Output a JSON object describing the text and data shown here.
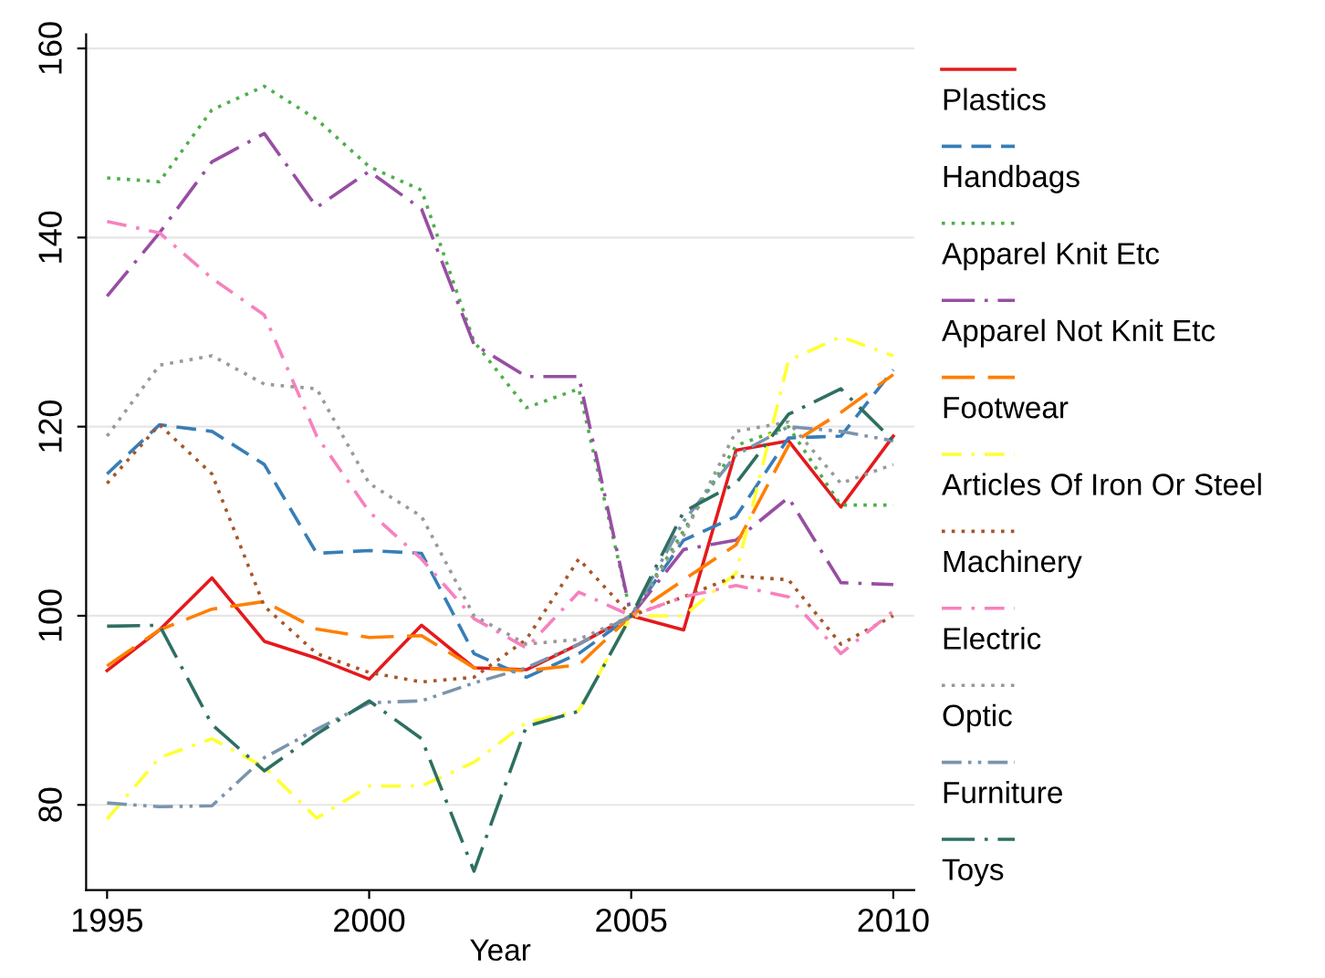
{
  "chart_data": {
    "type": "line",
    "xlabel": "Year",
    "x": [
      1995,
      1996,
      1997,
      1998,
      1999,
      2000,
      2001,
      2002,
      2003,
      2004,
      2005,
      2006,
      2007,
      2008,
      2009,
      2010
    ],
    "xlim": [
      1994.6,
      2010.4
    ],
    "xticks": [
      1995,
      2000,
      2005,
      2010
    ],
    "ylim": [
      71,
      161.5
    ],
    "yticks": [
      80,
      100,
      120,
      140,
      160
    ],
    "grid": "y",
    "legend": "right",
    "marker": "none",
    "series": [
      {
        "name": "Plastics",
        "color": "#e41a1c",
        "line_style": "solid",
        "values": [
          94.2,
          98.5,
          104,
          97.3,
          95.5,
          93.3,
          99,
          94.5,
          94.3,
          97,
          100,
          98.5,
          117.5,
          118.5,
          111.5,
          119
        ]
      },
      {
        "name": "Handbags",
        "color": "#377eb8",
        "line_style": "dashed",
        "values": [
          115,
          120.2,
          119.5,
          116,
          106.6,
          106.9,
          106.6,
          96,
          93.5,
          96,
          100,
          108,
          110.5,
          118.8,
          119,
          126
        ]
      },
      {
        "name": "Apparel Knit Etc",
        "color": "#4daf4a",
        "line_style": "dotted",
        "values": [
          146.3,
          145.9,
          153.5,
          156,
          152.5,
          147.5,
          145,
          129,
          122,
          124,
          100,
          109,
          118,
          120,
          111.7,
          111.7
        ]
      },
      {
        "name": "Apparel Not Knit Etc",
        "color": "#984ea3",
        "line_style": "longdashdot",
        "values": [
          133.8,
          140.5,
          148,
          151,
          143.2,
          147,
          143,
          128.7,
          125.3,
          125.3,
          100,
          107,
          108,
          112.5,
          103.5,
          103.3
        ]
      },
      {
        "name": "Footwear",
        "color": "#ff7f00",
        "line_style": "longdash",
        "values": [
          94.7,
          98.5,
          100.7,
          101.5,
          98.6,
          97.7,
          97.9,
          94.5,
          94.2,
          94.8,
          100,
          103.8,
          107.5,
          118,
          121.5,
          125.5
        ]
      },
      {
        "name": "Articles Of Iron Or Steel",
        "color": "#ffff33",
        "line_style": "dashdot",
        "values": [
          78.5,
          85,
          87,
          84,
          78.6,
          82,
          82,
          84.5,
          88.7,
          90,
          100,
          100,
          104.5,
          127,
          129.5,
          127.5
        ]
      },
      {
        "name": "Machinery",
        "color": "#a65628",
        "line_style": "dotted",
        "values": [
          114,
          120.2,
          115,
          101,
          96,
          94,
          93,
          93.5,
          97.5,
          106,
          100,
          102,
          104.2,
          103.8,
          97,
          100
        ]
      },
      {
        "name": "Electric",
        "color": "#f781bf",
        "line_style": "dashdot",
        "values": [
          141.7,
          140.5,
          135.7,
          131.8,
          119,
          111,
          106,
          99.7,
          96.6,
          102.5,
          100,
          102,
          103.2,
          102,
          96,
          100.5
        ]
      },
      {
        "name": "Optic",
        "color": "#999999",
        "line_style": "dotted",
        "values": [
          119,
          126.5,
          127.5,
          124.5,
          124,
          114,
          110.5,
          100,
          97,
          97.5,
          100,
          108.5,
          119.5,
          120.5,
          114,
          116
        ]
      },
      {
        "name": "Furniture",
        "color": "#7a94ad",
        "line_style": "dashdotdot",
        "values": [
          80.2,
          79.8,
          79.9,
          85,
          88,
          90.8,
          91,
          92.9,
          94.5,
          97,
          100,
          110,
          117,
          120,
          119.5,
          118.5
        ]
      },
      {
        "name": "Toys",
        "color": "#2e6f62",
        "line_style": "longdashdot",
        "values": [
          98.9,
          99,
          88.5,
          83.6,
          87.5,
          91,
          87,
          73,
          88.3,
          89.9,
          100,
          111,
          114,
          121.3,
          124,
          118.5
        ]
      }
    ]
  }
}
